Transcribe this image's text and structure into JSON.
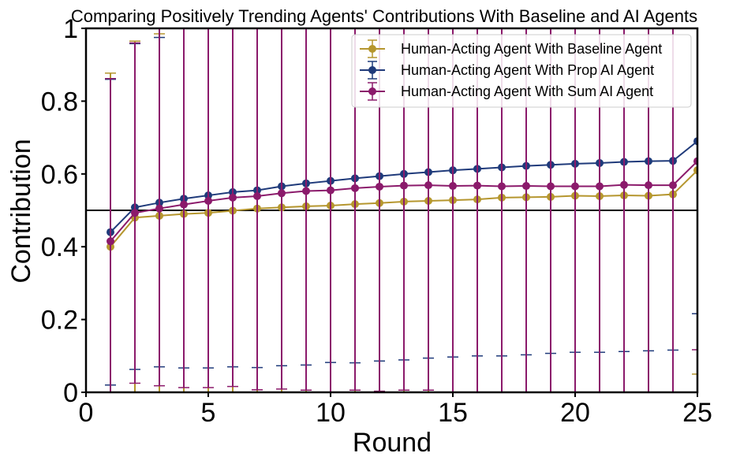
{
  "chart_data": {
    "type": "line",
    "title": "Comparing Positively Trending Agents' Contributions With Baseline and AI Agents",
    "xlabel": "Round",
    "ylabel": "Contribution",
    "xlim": [
      0,
      25
    ],
    "ylim": [
      0,
      1
    ],
    "xticks": [
      0,
      5,
      10,
      15,
      20,
      25
    ],
    "xtick_labels": [
      "0",
      "5",
      "10",
      "15",
      "20",
      "25"
    ],
    "yticks": [
      0,
      0.2,
      0.4,
      0.6,
      0.8,
      1
    ],
    "ytick_labels": [
      "0",
      "0.2",
      "0.4",
      "0.6",
      "0.8",
      "1"
    ],
    "reference_line": {
      "y": 0.5,
      "color": "#000000"
    },
    "legend": {
      "position": "top-right"
    },
    "grid": false,
    "x": [
      1,
      2,
      3,
      4,
      5,
      6,
      7,
      8,
      9,
      10,
      11,
      12,
      13,
      14,
      15,
      16,
      17,
      18,
      19,
      20,
      21,
      22,
      23,
      24,
      25
    ],
    "series": [
      {
        "name": "Human-Acting Agent With Baseline Agent",
        "color": "#b5962e",
        "values": [
          0.4,
          0.48,
          0.485,
          0.49,
          0.493,
          0.499,
          0.505,
          0.508,
          0.511,
          0.513,
          0.517,
          0.52,
          0.524,
          0.526,
          0.528,
          0.53,
          0.535,
          0.536,
          0.537,
          0.54,
          0.539,
          0.541,
          0.54,
          0.544,
          0.61
        ],
        "err_upper": [
          0.877,
          0.965,
          0.985,
          1.0,
          1.0,
          1.0,
          1.0,
          1.0,
          1.0,
          1.0,
          1.0,
          1.0,
          1.0,
          1.0,
          1.0,
          1.0,
          1.0,
          1.0,
          1.0,
          1.0,
          1.0,
          1.0,
          1.0,
          1.0,
          1.0
        ],
        "err_lower": [
          0.0,
          0.0,
          0.0,
          0.0,
          0.0,
          0.0,
          0.0,
          0.0,
          0.0,
          0.0,
          0.0,
          0.0,
          0.0,
          0.0,
          0.0,
          0.0,
          0.0,
          0.0,
          0.0,
          0.0,
          0.0,
          0.0,
          0.0,
          0.0,
          0.05
        ]
      },
      {
        "name": "Human-Acting Agent With Prop AI Agent",
        "color": "#1f3a7a",
        "values": [
          0.44,
          0.508,
          0.521,
          0.532,
          0.541,
          0.55,
          0.555,
          0.566,
          0.574,
          0.581,
          0.588,
          0.594,
          0.6,
          0.605,
          0.61,
          0.614,
          0.618,
          0.622,
          0.625,
          0.628,
          0.63,
          0.633,
          0.635,
          0.636,
          0.69
        ],
        "err_upper": [
          0.86,
          0.958,
          0.975,
          1.0,
          1.0,
          1.0,
          1.0,
          1.0,
          1.0,
          1.0,
          1.0,
          1.0,
          1.0,
          1.0,
          1.0,
          1.0,
          1.0,
          1.0,
          1.0,
          1.0,
          1.0,
          1.0,
          1.0,
          1.0,
          1.0
        ],
        "err_lower": [
          0.02,
          0.063,
          0.07,
          0.067,
          0.067,
          0.07,
          0.068,
          0.073,
          0.075,
          0.082,
          0.081,
          0.086,
          0.089,
          0.094,
          0.097,
          0.1,
          0.1,
          0.103,
          0.107,
          0.11,
          0.11,
          0.112,
          0.114,
          0.116,
          0.216
        ]
      },
      {
        "name": "Human-Acting Agent With Sum AI Agent",
        "color": "#8b1a6b",
        "values": [
          0.415,
          0.493,
          0.505,
          0.516,
          0.526,
          0.535,
          0.539,
          0.547,
          0.553,
          0.555,
          0.561,
          0.565,
          0.568,
          0.569,
          0.567,
          0.568,
          0.566,
          0.567,
          0.566,
          0.566,
          0.566,
          0.57,
          0.569,
          0.569,
          0.635
        ],
        "err_upper": [
          0.862,
          0.96,
          1.0,
          1.0,
          1.0,
          1.0,
          1.0,
          1.0,
          1.0,
          1.0,
          1.0,
          1.0,
          1.0,
          1.0,
          1.0,
          1.0,
          1.0,
          1.0,
          1.0,
          1.0,
          1.0,
          1.0,
          1.0,
          1.0,
          1.0
        ],
        "err_lower": [
          0.0,
          0.025,
          0.018,
          0.013,
          0.013,
          0.016,
          0.007,
          0.009,
          0.006,
          0.0,
          0.006,
          0.003,
          0.006,
          0.006,
          0.0,
          0.0,
          0.0,
          0.0,
          0.0,
          0.0,
          0.0,
          0.0,
          0.0,
          0.0,
          0.117
        ]
      }
    ]
  }
}
